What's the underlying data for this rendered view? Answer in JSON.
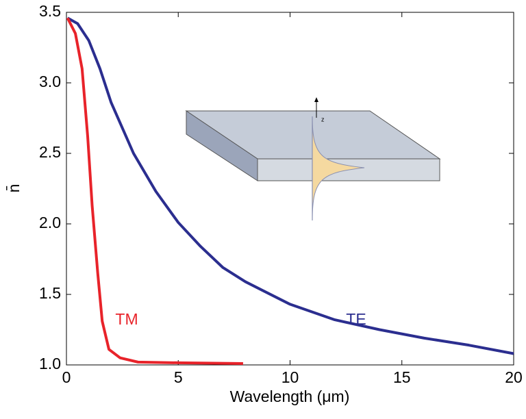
{
  "chart_data": {
    "type": "line",
    "xlabel": "Wavelength (μm)",
    "ylabel": "n̄",
    "xlim": [
      0,
      20
    ],
    "ylim": [
      1.0,
      3.5
    ],
    "xticks": [
      0,
      5,
      10,
      15,
      20
    ],
    "yticks": [
      {
        "value": 1.0,
        "label": "1.0"
      },
      1.5,
      {
        "value": 2.0,
        "label": "2.0"
      },
      2.5,
      {
        "value": 3.0,
        "label": "3.0"
      },
      3.5
    ],
    "grid": false,
    "annotations": [
      "z"
    ],
    "series": [
      {
        "name": "TE",
        "color": "#2b2e8f",
        "x": [
          0.05,
          0.5,
          1,
          1.5,
          2,
          3,
          4,
          5,
          6,
          7,
          8,
          10,
          12,
          14,
          16,
          18,
          20
        ],
        "values": [
          3.46,
          3.42,
          3.3,
          3.1,
          2.86,
          2.5,
          2.23,
          2.01,
          1.84,
          1.69,
          1.59,
          1.43,
          1.32,
          1.25,
          1.19,
          1.14,
          1.08
        ]
      },
      {
        "name": "TM",
        "color": "#e8232a",
        "x": [
          0.05,
          0.4,
          0.7,
          0.95,
          1.15,
          1.4,
          1.6,
          1.9,
          2.4,
          3.2,
          5,
          7.9
        ],
        "values": [
          3.46,
          3.35,
          3.1,
          2.62,
          2.13,
          1.65,
          1.31,
          1.11,
          1.05,
          1.02,
          1.015,
          1.01
        ]
      }
    ]
  }
}
